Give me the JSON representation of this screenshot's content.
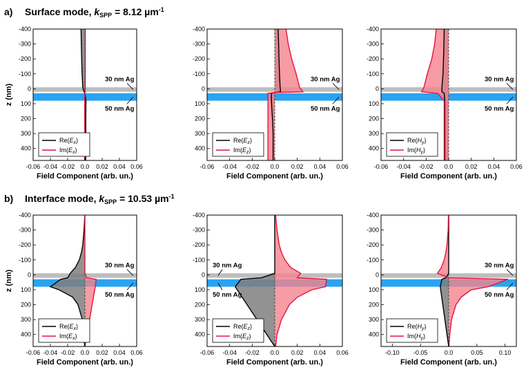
{
  "section_a": {
    "letter": "a)",
    "text": "Surface mode, ",
    "k": "k",
    "sub": "SPP",
    "value": " = 8.12 µm",
    "sup": "-1"
  },
  "section_b": {
    "letter": "b)",
    "text": "Interface mode, ",
    "k": "k",
    "sub": "SPP",
    "value": " = 10.53 µm",
    "sup": "-1"
  },
  "colors": {
    "re": "#000000",
    "im": "#e8113a",
    "im_fill": "#f5828f",
    "re_fill": "#7f7f7f",
    "ag_gray": "#bdbdbd",
    "ag_blue": "#2aa3f1"
  },
  "chart_data": [
    {
      "id": "a1",
      "type": "line",
      "xlabel": "Field Component (arb. un.)",
      "ylabel": "z (nm)",
      "xlim": [
        -0.06,
        0.06
      ],
      "xticks": [
        -0.06,
        -0.04,
        -0.02,
        0,
        0.02,
        0.04,
        0.06
      ],
      "xticklabels": [
        "-0.06",
        "-0.04",
        "-0.02",
        "0.0",
        "0.02",
        "0.04",
        "0.06"
      ],
      "ylim": [
        -400,
        480
      ],
      "yticks": [
        -400,
        -300,
        -200,
        -100,
        0,
        100,
        200,
        300,
        400
      ],
      "yticklabels": [
        "-400",
        "-300",
        "-200",
        "-100",
        "0",
        "100",
        "200",
        "300",
        "400"
      ],
      "layers": [
        {
          "label": "30 nm Ag",
          "z": [
            -10,
            20
          ]
        },
        {
          "label": "50 nm Ag",
          "z": [
            30,
            80
          ]
        }
      ],
      "series": [
        {
          "name": "Re(Ex)",
          "comp": "E",
          "sub": "x",
          "color": "#000000",
          "fill": "#7f7f7f",
          "z": [
            -400,
            -300,
            -200,
            -100,
            -10,
            20,
            30,
            80,
            200,
            300,
            480
          ],
          "v": [
            -0.0045,
            -0.0042,
            -0.0038,
            -0.0033,
            -0.0025,
            -0.001,
            0.0,
            0.0012,
            0.001,
            0.001,
            0.0009
          ]
        },
        {
          "name": "Im(Ex)",
          "comp": "E",
          "sub": "x",
          "color": "#e8113a",
          "fill": "#f5828f",
          "z": [
            -400,
            -10,
            20,
            30,
            80,
            480
          ],
          "v": [
            0.0005,
            0.0005,
            0.0003,
            0.0,
            -0.0003,
            -0.0003
          ]
        }
      ]
    },
    {
      "id": "a2",
      "type": "line",
      "xlabel": "Field Component (arb. un.)",
      "ylabel": "",
      "xlim": [
        -0.06,
        0.06
      ],
      "xticks": [
        -0.06,
        -0.04,
        -0.02,
        0,
        0.02,
        0.04,
        0.06
      ],
      "xticklabels": [
        "-0.06",
        "-0.04",
        "-0.02",
        "0.0",
        "0.02",
        "0.04",
        "0.06"
      ],
      "ylim": [
        -400,
        480
      ],
      "yticks": [
        -400,
        -300,
        -200,
        -100,
        0,
        100,
        200,
        300,
        400
      ],
      "yticklabels": [
        "-400",
        "-300",
        "-200",
        "-100",
        "0",
        "100",
        "200",
        "300",
        "400"
      ],
      "layers": [
        {
          "label": "30 nm Ag",
          "z": [
            -10,
            20
          ]
        },
        {
          "label": "50 nm Ag",
          "z": [
            30,
            80
          ]
        }
      ],
      "series": [
        {
          "name": "Re(Ez)",
          "comp": "E",
          "sub": "z",
          "color": "#000000",
          "fill": "#7f7f7f",
          "z": [
            -400,
            -300,
            -200,
            -100,
            -10,
            20,
            25,
            30,
            80,
            200,
            300,
            480
          ],
          "v": [
            0.003,
            0.0034,
            0.0038,
            0.0042,
            0.0048,
            0.0052,
            0.001,
            -0.003,
            -0.003,
            -0.002,
            -0.0015,
            -0.0015
          ]
        },
        {
          "name": "Im(Ez)",
          "comp": "E",
          "sub": "z",
          "color": "#e8113a",
          "fill": "#f5828f",
          "z": [
            -400,
            -300,
            -200,
            -100,
            -10,
            20,
            25,
            30,
            80,
            480
          ],
          "v": [
            0.01,
            0.012,
            0.015,
            0.019,
            0.022,
            0.025,
            0.0,
            -0.006,
            -0.006,
            -0.006
          ]
        }
      ]
    },
    {
      "id": "a3",
      "type": "line",
      "xlabel": "Field Component (arb. un.)",
      "ylabel": "",
      "xlim": [
        -0.06,
        0.06
      ],
      "xticks": [
        -0.06,
        -0.04,
        -0.02,
        0,
        0.02,
        0.04,
        0.06
      ],
      "xticklabels": [
        "-0.06",
        "-0.04",
        "-0.02",
        "0.0",
        "0.02",
        "0.04",
        "0.06"
      ],
      "ylim": [
        -400,
        480
      ],
      "yticks": [
        -400,
        -300,
        -200,
        -100,
        0,
        100,
        200,
        300,
        400
      ],
      "yticklabels": [
        "-400",
        "-300",
        "-200",
        "-100",
        "0",
        "100",
        "200",
        "300",
        "400"
      ],
      "layers": [
        {
          "label": "30 nm Ag",
          "z": [
            -10,
            20
          ]
        },
        {
          "label": "50 nm Ag",
          "z": [
            30,
            80
          ]
        }
      ],
      "series": [
        {
          "name": "Re(Hy)",
          "comp": "H",
          "sub": "y",
          "color": "#000000",
          "fill": "#7f7f7f",
          "z": [
            -400,
            -300,
            -200,
            -100,
            -10,
            20,
            30,
            80,
            480
          ],
          "v": [
            -0.004,
            -0.0042,
            -0.0046,
            -0.005,
            -0.006,
            -0.006,
            -0.004,
            -0.0035,
            -0.0035
          ]
        },
        {
          "name": "Im(Hy)",
          "comp": "H",
          "sub": "y",
          "color": "#e8113a",
          "fill": "#f5828f",
          "z": [
            -400,
            -300,
            -200,
            -100,
            -10,
            20,
            30,
            80,
            480
          ],
          "v": [
            -0.011,
            -0.0125,
            -0.015,
            -0.019,
            -0.022,
            -0.024,
            -0.01,
            -0.004,
            -0.004
          ]
        }
      ]
    },
    {
      "id": "b1",
      "type": "line",
      "xlabel": "Field Component (arb. un.)",
      "ylabel": "z (nm)",
      "xlim": [
        -0.06,
        0.06
      ],
      "xticks": [
        -0.06,
        -0.04,
        -0.02,
        0,
        0.02,
        0.04,
        0.06
      ],
      "xticklabels": [
        "-0.06",
        "-0.04",
        "-0.02",
        "0.0",
        "0.02",
        "0.04",
        "0.06"
      ],
      "ylim": [
        -400,
        480
      ],
      "yticks": [
        -400,
        -300,
        -200,
        -100,
        0,
        100,
        200,
        300,
        400
      ],
      "yticklabels": [
        "-400",
        "-300",
        "-200",
        "-100",
        "0",
        "100",
        "200",
        "300",
        "400"
      ],
      "layers": [
        {
          "label": "30 nm Ag",
          "z": [
            -10,
            20
          ]
        },
        {
          "label": "50 nm Ag",
          "z": [
            30,
            80
          ]
        }
      ],
      "series": [
        {
          "name": "Re(Ex)",
          "comp": "E",
          "sub": "x",
          "color": "#000000",
          "fill": "#7f7f7f",
          "z": [
            -400,
            -300,
            -200,
            -150,
            -100,
            -50,
            -10,
            20,
            30,
            80,
            100,
            150,
            200,
            300,
            400,
            480
          ],
          "v": [
            -0.0002,
            -0.001,
            -0.0025,
            -0.004,
            -0.0065,
            -0.011,
            -0.017,
            -0.02,
            -0.028,
            -0.04,
            -0.03,
            -0.014,
            -0.008,
            -0.003,
            -0.001,
            -0.0003
          ]
        },
        {
          "name": "Im(Ex)",
          "comp": "E",
          "sub": "x",
          "color": "#e8113a",
          "fill": "#f5828f",
          "z": [
            -400,
            -10,
            20,
            30,
            80,
            480
          ],
          "v": [
            0.0,
            0.0,
            0.002,
            0.013,
            0.012,
            0.0
          ]
        }
      ]
    },
    {
      "id": "b2",
      "type": "line",
      "xlabel": "Field Component (arb. un.)",
      "ylabel": "",
      "xlim": [
        -0.06,
        0.06
      ],
      "xticks": [
        -0.06,
        -0.04,
        -0.02,
        0,
        0.02,
        0.04,
        0.06
      ],
      "xticklabels": [
        "-0.06",
        "-0.04",
        "-0.02",
        "0.0",
        "0.02",
        "0.04",
        "0.06"
      ],
      "ylim": [
        -400,
        480
      ],
      "yticks": [
        -400,
        -300,
        -200,
        -100,
        0,
        100,
        200,
        300,
        400
      ],
      "yticklabels": [
        "-400",
        "-300",
        "-200",
        "-100",
        "0",
        "100",
        "200",
        "300",
        "400"
      ],
      "layers": [
        {
          "label": "30 nm Ag",
          "z": [
            -10,
            20
          ]
        },
        {
          "label": "50 nm Ag",
          "z": [
            30,
            80
          ]
        }
      ],
      "series": [
        {
          "name": "Re(Ez)",
          "comp": "E",
          "sub": "z",
          "color": "#000000",
          "fill": "#7f7f7f",
          "z": [
            -400,
            -10,
            20,
            30,
            80,
            480
          ],
          "v": [
            0.0,
            0.0,
            -0.012,
            -0.03,
            -0.035,
            0.0
          ]
        },
        {
          "name": "Im(Ez)",
          "comp": "E",
          "sub": "z",
          "color": "#e8113a",
          "fill": "#f5828f",
          "z": [
            -400,
            -300,
            -200,
            -150,
            -100,
            -50,
            -10,
            20,
            30,
            80,
            100,
            150,
            200,
            300,
            400,
            480
          ],
          "v": [
            0.0008,
            0.002,
            0.004,
            0.006,
            0.009,
            0.014,
            0.023,
            0.02,
            0.046,
            0.045,
            0.033,
            0.02,
            0.013,
            0.006,
            0.002,
            0.0008
          ]
        }
      ]
    },
    {
      "id": "b3",
      "type": "line",
      "xlabel": "Field Component (arb. un.)",
      "ylabel": "",
      "xlim": [
        -0.12,
        0.12
      ],
      "xticks": [
        -0.1,
        -0.05,
        0,
        0.05,
        0.1
      ],
      "xticklabels": [
        "-0.10",
        "-0.05",
        "0.0",
        "0.05",
        "0.10"
      ],
      "ylim": [
        -400,
        480
      ],
      "yticks": [
        -400,
        -300,
        -200,
        -100,
        0,
        100,
        200,
        300,
        400
      ],
      "yticklabels": [
        "-400",
        "-300",
        "-200",
        "-100",
        "0",
        "100",
        "200",
        "300",
        "400"
      ],
      "layers": [
        {
          "label": "30 nm Ag",
          "z": [
            -10,
            20
          ]
        },
        {
          "label": "50 nm Ag",
          "z": [
            30,
            80
          ]
        }
      ],
      "series": [
        {
          "name": "Re(Hy)",
          "comp": "H",
          "sub": "y",
          "color": "#000000",
          "fill": "#7f7f7f",
          "z": [
            -400,
            -10,
            20,
            30,
            80,
            480
          ],
          "v": [
            0.0,
            0.0,
            -0.005,
            -0.012,
            -0.015,
            0.0
          ]
        },
        {
          "name": "Im(Hy)",
          "comp": "H",
          "sub": "y",
          "color": "#e8113a",
          "fill": "#f5828f",
          "z": [
            -400,
            -300,
            -200,
            -150,
            -100,
            -50,
            -10,
            20,
            30,
            80,
            100,
            150,
            200,
            300,
            400,
            480
          ],
          "v": [
            -0.0005,
            -0.001,
            -0.003,
            -0.005,
            -0.008,
            -0.013,
            -0.02,
            0.0,
            0.105,
            0.07,
            0.04,
            0.022,
            0.013,
            0.005,
            0.002,
            0.0005
          ]
        }
      ]
    }
  ]
}
